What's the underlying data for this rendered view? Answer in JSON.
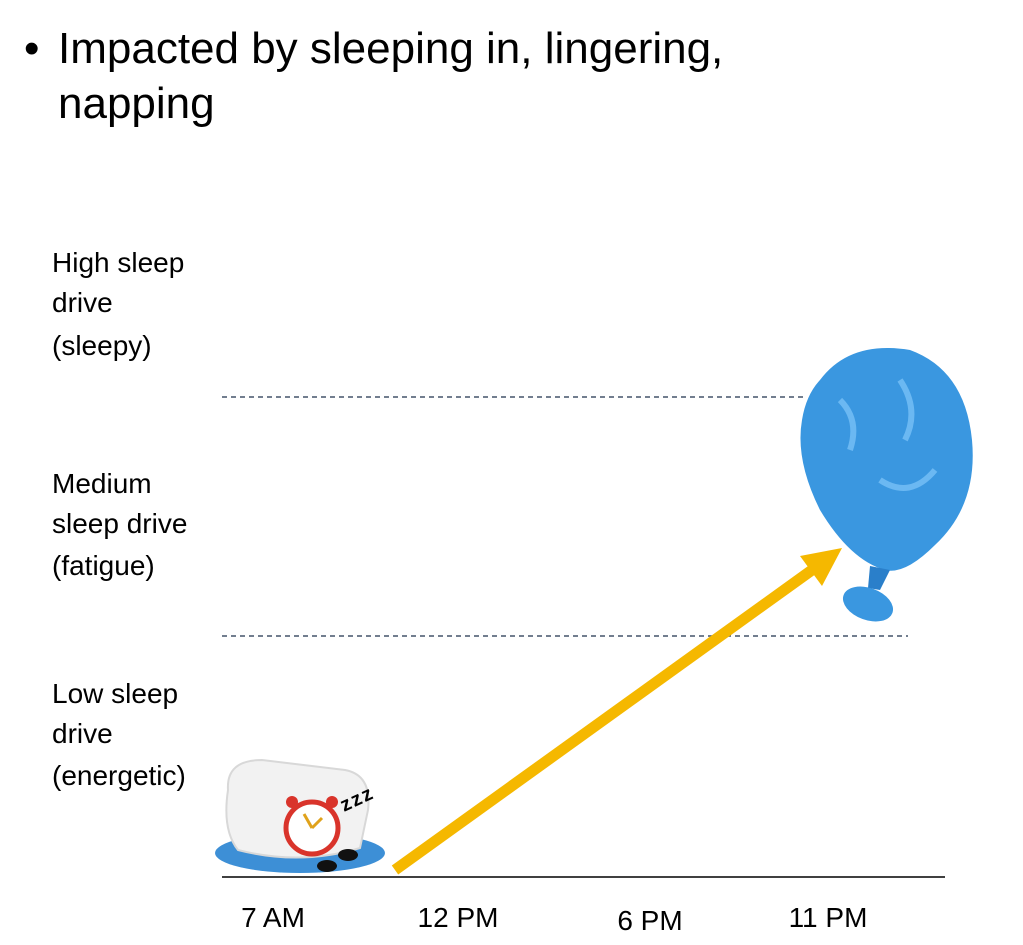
{
  "bullet": {
    "lines": [
      "Impacted by sleeping in, lingering,",
      "napping"
    ]
  },
  "levels": [
    {
      "lines": [
        "High sleep",
        "drive",
        "(sleepy)"
      ]
    },
    {
      "lines": [
        "Medium",
        "sleep drive",
        "(fatigue)"
      ]
    },
    {
      "lines": [
        "Low sleep",
        "drive",
        "(energetic)"
      ]
    }
  ],
  "times": [
    "7 AM",
    "12 PM",
    "6 PM",
    "11 PM"
  ],
  "sleep_sound": "z z z"
}
